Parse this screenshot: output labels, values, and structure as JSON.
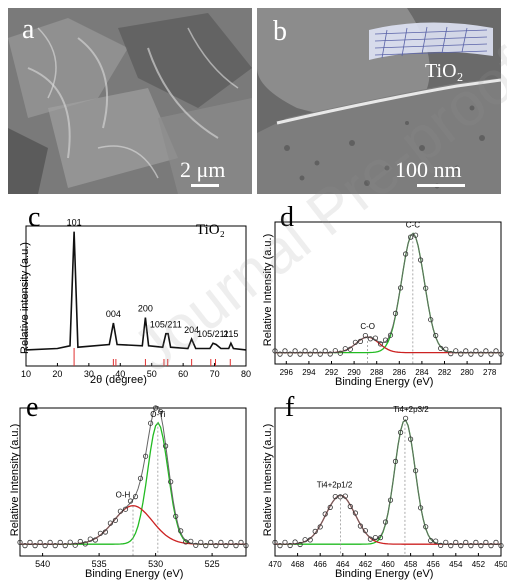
{
  "watermark": "Journal Pre-proof",
  "colors": {
    "data": "#333333",
    "fit_green": "#22bb22",
    "fit_red": "#cc2222",
    "ref_line": "#e03030"
  },
  "panel_a": {
    "label": "a",
    "scalebar": "2 μm"
  },
  "panel_b": {
    "label": "b",
    "scalebar": "100 nm",
    "inset": "TiO₂"
  },
  "panel_c": {
    "label": "c",
    "material": "TiO₂",
    "chart_data": {
      "type": "line",
      "xlabel": "2θ (degree)",
      "ylabel": "Relative intensity (a.u.)",
      "xlim": [
        10,
        80
      ],
      "xticks": [
        "10",
        "20",
        "30",
        "40",
        "50",
        "60",
        "70",
        "80"
      ],
      "series": [
        {
          "values": [
            [
              10,
              0.12
            ],
            [
              20,
              0.13
            ],
            [
              24,
              0.15
            ],
            [
              25.3,
              1.0
            ],
            [
              26.5,
              0.14
            ],
            [
              36.5,
              0.16
            ],
            [
              37.8,
              0.32
            ],
            [
              39,
              0.16
            ],
            [
              47,
              0.15
            ],
            [
              48,
              0.36
            ],
            [
              49,
              0.15
            ],
            [
              53.5,
              0.14
            ],
            [
              54.5,
              0.24
            ],
            [
              55.2,
              0.24
            ],
            [
              56,
              0.14
            ],
            [
              61.5,
              0.13
            ],
            [
              62.7,
              0.2
            ],
            [
              64,
              0.13
            ],
            [
              68.5,
              0.13
            ],
            [
              69.5,
              0.17
            ],
            [
              70.5,
              0.16
            ],
            [
              72,
              0.13
            ],
            [
              74.5,
              0.13
            ],
            [
              75.2,
              0.17
            ],
            [
              76,
              0.13
            ],
            [
              80,
              0.12
            ]
          ]
        }
      ],
      "peak_labels": [
        {
          "text": "101",
          "x": 25.3
        },
        {
          "text": "004",
          "x": 37.8
        },
        {
          "text": "200",
          "x": 48.0
        },
        {
          "text": "105/211",
          "x": 54.5
        },
        {
          "text": "204",
          "x": 62.7
        },
        {
          "text": "105/211",
          "x": 69.5
        },
        {
          "text": "215",
          "x": 75.2
        }
      ],
      "reference_lines": [
        25.3,
        37.8,
        38.6,
        48.0,
        53.9,
        55.1,
        62.7,
        68.8,
        70.3,
        75.0
      ]
    }
  },
  "panel_d": {
    "label": "d",
    "chart_data": {
      "type": "line",
      "xlabel": "Binding Energy (eV)",
      "ylabel": "Relative Intensity (a.u.)",
      "xlim": [
        297,
        277
      ],
      "xticks": [
        "296",
        "294",
        "292",
        "290",
        "288",
        "286",
        "284",
        "282",
        "280",
        "278"
      ],
      "peak_labels": [
        {
          "text": "C-C",
          "x": 284.8
        },
        {
          "text": "C-O",
          "x": 288.8
        }
      ],
      "peaks": [
        {
          "center": 284.8,
          "height": 0.84,
          "width": 1.0
        },
        {
          "center": 288.8,
          "height": 0.11,
          "width": 1.0
        }
      ]
    }
  },
  "panel_e": {
    "label": "e",
    "chart_data": {
      "type": "line",
      "xlabel": "Binding Energy (eV)",
      "ylabel": "Relative Intensity (a.u.)",
      "xlim": [
        542,
        522
      ],
      "xticks": [
        "540",
        "535",
        "530",
        "525"
      ],
      "peak_labels": [
        {
          "text": "O-Ti",
          "x": 529.8
        },
        {
          "text": "O-H",
          "x": 532.0
        }
      ],
      "peaks": [
        {
          "center": 529.8,
          "height": 0.82,
          "width": 0.9
        },
        {
          "center": 532.0,
          "height": 0.26,
          "width": 1.7
        }
      ]
    }
  },
  "panel_f": {
    "label": "f",
    "chart_data": {
      "type": "line",
      "xlabel": "Binding Energy (eV)",
      "ylabel": "Relative Intensity (a.u.)",
      "xlim": [
        470,
        450
      ],
      "xticks": [
        "470",
        "468",
        "466",
        "464",
        "462",
        "460",
        "458",
        "456",
        "454",
        "452",
        "450"
      ],
      "peak_labels": [
        {
          "text": "Ti4+2p3/2",
          "x": 458.5
        },
        {
          "text": "Ti4+2p1/2",
          "x": 464.2
        }
      ],
      "peaks": [
        {
          "center": 458.5,
          "height": 0.84,
          "width": 0.9
        },
        {
          "center": 464.2,
          "height": 0.33,
          "width": 1.3
        }
      ]
    }
  }
}
